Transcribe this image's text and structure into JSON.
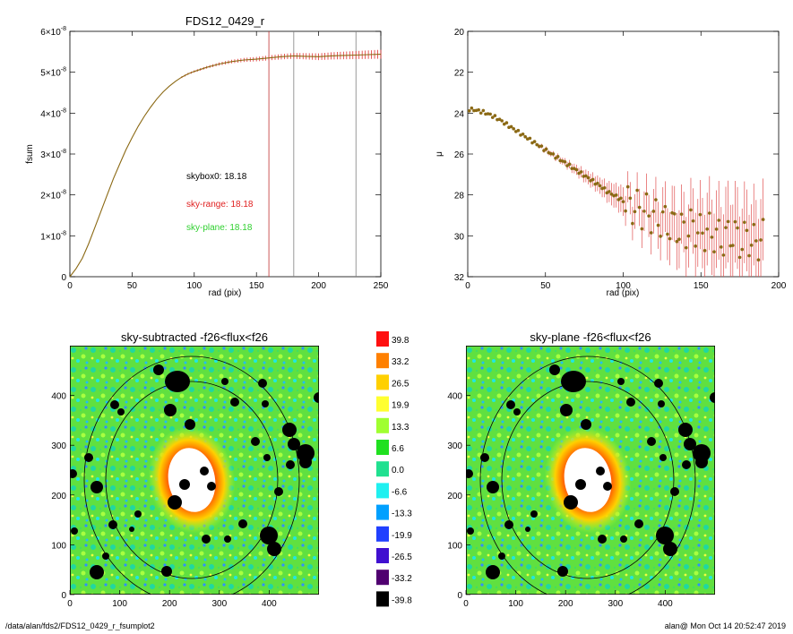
{
  "colors": {
    "curve_main": "#8b6914",
    "curve_err": "#e03030",
    "sky_range": "#e02020",
    "sky_plane": "#30d030",
    "vline": "#808080",
    "vline_red": "#c03030",
    "mu_points": "#8b6914",
    "mu_err": "#e05050"
  },
  "footer": {
    "left": "/data/alan/fds2/FDS12_0429_r_fsumplot2",
    "right": "alan@  Mon Oct 14 20:52:47 2019"
  },
  "chart_data": [
    {
      "type": "line",
      "title": "FDS12_0429_r",
      "xlabel": "rad (pix)",
      "ylabel": "fsum",
      "xlim": [
        0,
        250
      ],
      "ylim": [
        0,
        6e-08
      ],
      "xticks": [
        0,
        50,
        100,
        150,
        200,
        250
      ],
      "xtick_labels": [
        "0",
        "50",
        "100",
        "150",
        "200",
        "250"
      ],
      "yticks": [
        0,
        1e-08,
        2e-08,
        3e-08,
        4e-08,
        5e-08,
        6e-08
      ],
      "ytick_labels": [
        "0",
        "1×10",
        "2×10",
        "3×10",
        "4×10",
        "5×10",
        "6×10"
      ],
      "ytick_exponent": "-8",
      "x": [
        0,
        5,
        10,
        15,
        20,
        25,
        30,
        35,
        40,
        45,
        50,
        55,
        60,
        65,
        70,
        75,
        80,
        85,
        90,
        95,
        100,
        110,
        120,
        130,
        140,
        150,
        160,
        170,
        180,
        190,
        200,
        210,
        220,
        230,
        240,
        250
      ],
      "y": [
        0,
        2e-09,
        4.5e-09,
        8e-09,
        1.2e-08,
        1.6e-08,
        2e-08,
        2.4e-08,
        2.75e-08,
        3.1e-08,
        3.4e-08,
        3.68e-08,
        3.93e-08,
        4.15e-08,
        4.35e-08,
        4.52e-08,
        4.66e-08,
        4.78e-08,
        4.88e-08,
        4.96e-08,
        5.02e-08,
        5.12e-08,
        5.2e-08,
        5.26e-08,
        5.3e-08,
        5.32e-08,
        5.35e-08,
        5.38e-08,
        5.4e-08,
        5.39e-08,
        5.38e-08,
        5.4e-08,
        5.41e-08,
        5.42e-08,
        5.43e-08,
        5.44e-08
      ],
      "vlines": [
        160,
        180,
        230
      ],
      "annotations": [
        {
          "text": "skybox0: 18.18",
          "color": "black"
        },
        {
          "text": "sky-range: 18.18",
          "color": "red"
        },
        {
          "text": "sky-plane: 18.18",
          "color": "green"
        }
      ]
    },
    {
      "type": "scatter",
      "title": "",
      "xlabel": "rad (pix)",
      "ylabel": "μ",
      "xlim": [
        0,
        200
      ],
      "ylim": [
        32,
        20
      ],
      "xticks": [
        0,
        50,
        100,
        150,
        200
      ],
      "xtick_labels": [
        "0",
        "50",
        "100",
        "150",
        "200"
      ],
      "yticks": [
        20,
        22,
        24,
        26,
        28,
        30,
        32
      ],
      "ytick_labels": [
        "20",
        "22",
        "24",
        "26",
        "28",
        "30",
        "32"
      ],
      "x": [
        0,
        5,
        10,
        15,
        20,
        25,
        30,
        35,
        40,
        45,
        50,
        55,
        60,
        65,
        70,
        75,
        80,
        85,
        90,
        95,
        100,
        105,
        110,
        115,
        120,
        125,
        130,
        135,
        140,
        145,
        150,
        155,
        160,
        165,
        170,
        175,
        180,
        185,
        190
      ],
      "y": [
        23.8,
        23.85,
        23.95,
        24.1,
        24.3,
        24.55,
        24.8,
        25.05,
        25.3,
        25.55,
        25.8,
        26.05,
        26.3,
        26.55,
        26.8,
        27.05,
        27.3,
        27.55,
        27.85,
        28.05,
        28.3,
        28.5,
        28.7,
        28.85,
        29.05,
        29.25,
        29.45,
        29.6,
        29.8,
        29.5,
        29.9,
        29.75,
        30.0,
        30.2,
        29.8,
        30.3,
        30.05,
        30.4,
        30.1
      ],
      "err": [
        0.02,
        0.02,
        0.03,
        0.03,
        0.04,
        0.05,
        0.06,
        0.07,
        0.08,
        0.1,
        0.12,
        0.14,
        0.16,
        0.2,
        0.25,
        0.3,
        0.35,
        0.4,
        0.5,
        0.6,
        0.7,
        0.8,
        0.9,
        1.0,
        1.1,
        1.2,
        1.3,
        1.4,
        1.5,
        1.6,
        1.7,
        1.8,
        1.9,
        2.0,
        2.0,
        2.0,
        2.0,
        2.0,
        2.0
      ]
    },
    {
      "type": "heatmap",
      "title": "sky-subtracted -f26<flux<f26",
      "xlim": [
        0,
        500
      ],
      "ylim": [
        0,
        500
      ],
      "xticks": [
        0,
        100,
        200,
        300,
        400
      ],
      "xtick_labels": [
        "0",
        "100",
        "200",
        "300",
        "400"
      ],
      "yticks": [
        0,
        100,
        200,
        300,
        400
      ],
      "ytick_labels": [
        "0",
        "100",
        "200",
        "300",
        "400"
      ]
    },
    {
      "type": "heatmap",
      "title": "sky-plane -f26<flux<f26",
      "xlim": [
        0,
        500
      ],
      "ylim": [
        0,
        500
      ],
      "xticks": [
        0,
        100,
        200,
        300,
        400
      ],
      "xtick_labels": [
        "0",
        "100",
        "200",
        "300",
        "400"
      ],
      "yticks": [
        0,
        100,
        200,
        300,
        400
      ],
      "ytick_labels": [
        "0",
        "100",
        "200",
        "300",
        "400"
      ]
    }
  ],
  "colorbar": {
    "labels": [
      "39.8",
      "33.2",
      "26.5",
      "19.9",
      "13.3",
      "6.6",
      "0.0",
      "-6.6",
      "-13.3",
      "-19.9",
      "-26.5",
      "-33.2",
      "-39.8"
    ],
    "colors": [
      "#ff1010",
      "#ff8000",
      "#ffd000",
      "#ffff30",
      "#a0ff30",
      "#20e020",
      "#20e090",
      "#20f0f0",
      "#00a0ff",
      "#2040ff",
      "#4010d0",
      "#500070",
      "#000000"
    ]
  }
}
